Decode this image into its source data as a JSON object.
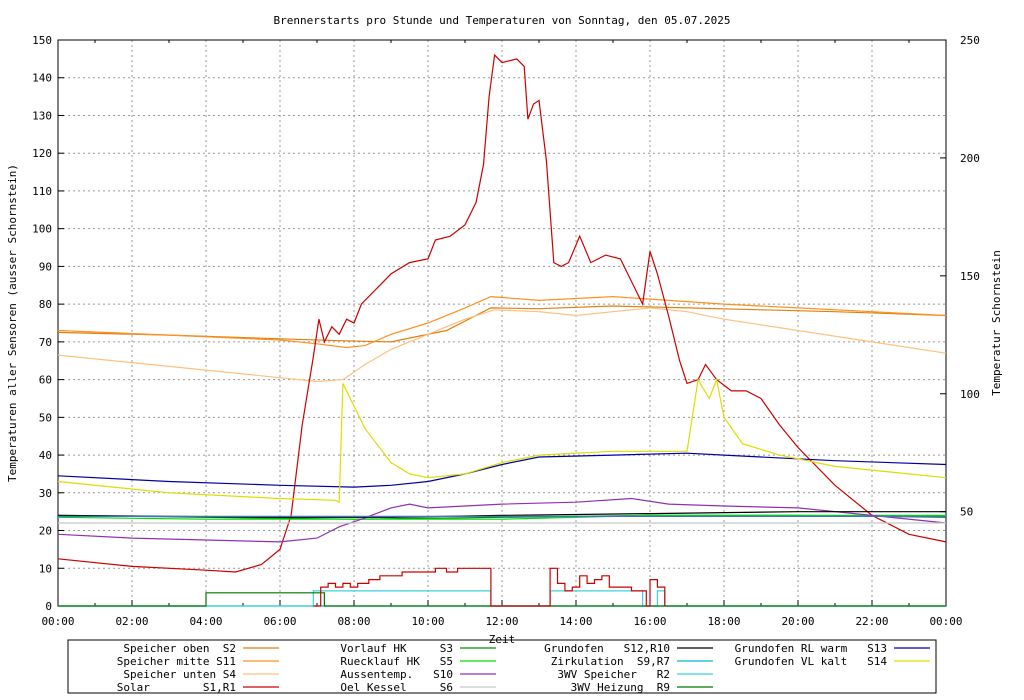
{
  "chart_data": {
    "type": "line",
    "title": "Brennerstarts pro Stunde und Temperaturen von Sonntag, den 05.07.2025",
    "xlabel": "Zeit",
    "ylabel_left": "Temperaturen aller Sensoren (ausser Schornstein)",
    "ylabel_right": "Temperatur Schornstein",
    "ylabel_right_color": "#ff44dd",
    "xlim": [
      0,
      24
    ],
    "ylim_left": [
      0,
      150
    ],
    "ylim_right": [
      10,
      250
    ],
    "x_ticks": [
      "00:00",
      "02:00",
      "04:00",
      "06:00",
      "08:00",
      "10:00",
      "12:00",
      "14:00",
      "16:00",
      "18:00",
      "20:00",
      "22:00",
      "00:00"
    ],
    "y_ticks_left": [
      "0",
      "10",
      "20",
      "30",
      "40",
      "50",
      "60",
      "70",
      "80",
      "90",
      "100",
      "110",
      "120",
      "130",
      "140",
      "150"
    ],
    "y_ticks_right": [
      {
        "v": 50,
        "label": "50"
      },
      {
        "v": 100,
        "label": "100"
      },
      {
        "v": 150,
        "label": "150"
      },
      {
        "v": 200,
        "label": "200"
      },
      {
        "v": 250,
        "label": "250"
      }
    ],
    "grid": true,
    "series": [
      {
        "name": "Speicher oben  S2",
        "color": "#e08010",
        "axis": "left",
        "points": [
          [
            0,
            72.5
          ],
          [
            3,
            71.8
          ],
          [
            6,
            70.8
          ],
          [
            7.6,
            70.3
          ],
          [
            9,
            70
          ],
          [
            10.5,
            73
          ],
          [
            11.7,
            79
          ],
          [
            13,
            78.8
          ],
          [
            15,
            79.5
          ],
          [
            17,
            79
          ],
          [
            19,
            78.5
          ],
          [
            21,
            78
          ],
          [
            24,
            77
          ]
        ]
      },
      {
        "name": "Speicher mitte S11",
        "color": "#ff9020",
        "axis": "left",
        "points": [
          [
            0,
            73
          ],
          [
            3,
            71.8
          ],
          [
            6,
            70.5
          ],
          [
            7,
            69.5
          ],
          [
            7.8,
            68.5
          ],
          [
            8.3,
            69
          ],
          [
            9,
            72
          ],
          [
            10,
            75
          ],
          [
            11,
            79
          ],
          [
            11.7,
            82
          ],
          [
            13,
            81
          ],
          [
            15,
            82
          ],
          [
            16.5,
            81
          ],
          [
            18,
            80
          ],
          [
            20,
            79
          ],
          [
            22,
            78
          ],
          [
            24,
            77
          ]
        ]
      },
      {
        "name": "Speicher unten S4",
        "color": "#ffc080",
        "axis": "left",
        "points": [
          [
            0,
            66.5
          ],
          [
            3,
            63.5
          ],
          [
            6,
            60.5
          ],
          [
            7,
            59.5
          ],
          [
            7.7,
            60
          ],
          [
            8.3,
            64
          ],
          [
            9,
            68
          ],
          [
            10,
            72
          ],
          [
            11,
            76
          ],
          [
            11.8,
            78.5
          ],
          [
            13,
            78
          ],
          [
            14,
            77
          ],
          [
            15,
            78
          ],
          [
            16,
            79
          ],
          [
            17,
            78
          ],
          [
            18,
            76
          ],
          [
            20,
            73
          ],
          [
            22,
            70
          ],
          [
            24,
            67
          ]
        ]
      },
      {
        "name": "Solar        S1,R1",
        "color": "#cc0000",
        "axis": "left",
        "points": [
          [
            0,
            12.5
          ],
          [
            2,
            10.5
          ],
          [
            4,
            9.5
          ],
          [
            4.8,
            9
          ],
          [
            5.5,
            11
          ],
          [
            6,
            15
          ],
          [
            6.3,
            24
          ],
          [
            6.6,
            48
          ],
          [
            6.9,
            66
          ],
          [
            7.05,
            76
          ],
          [
            7.2,
            70
          ],
          [
            7.4,
            74
          ],
          [
            7.6,
            72
          ],
          [
            7.8,
            76
          ],
          [
            8,
            75
          ],
          [
            8.2,
            80
          ],
          [
            8.6,
            84
          ],
          [
            9,
            88
          ],
          [
            9.5,
            91
          ],
          [
            10,
            92
          ],
          [
            10.2,
            97
          ],
          [
            10.6,
            98
          ],
          [
            11,
            101
          ],
          [
            11.3,
            107
          ],
          [
            11.5,
            117
          ],
          [
            11.65,
            135
          ],
          [
            11.8,
            146
          ],
          [
            12,
            144
          ],
          [
            12.4,
            145
          ],
          [
            12.6,
            143
          ],
          [
            12.7,
            129
          ],
          [
            12.85,
            133
          ],
          [
            13,
            134
          ],
          [
            13.2,
            118
          ],
          [
            13.4,
            91
          ],
          [
            13.6,
            90
          ],
          [
            13.8,
            91
          ],
          [
            14.1,
            98
          ],
          [
            14.4,
            91
          ],
          [
            14.8,
            93
          ],
          [
            15.2,
            92
          ],
          [
            15.6,
            84
          ],
          [
            15.8,
            80
          ],
          [
            16,
            94
          ],
          [
            16.2,
            88
          ],
          [
            16.5,
            77
          ],
          [
            16.8,
            65
          ],
          [
            17,
            59
          ],
          [
            17.3,
            60
          ],
          [
            17.5,
            64
          ],
          [
            17.8,
            60
          ],
          [
            18.2,
            57
          ],
          [
            18.6,
            57
          ],
          [
            19,
            55
          ],
          [
            19.5,
            48
          ],
          [
            20,
            42
          ],
          [
            21,
            32
          ],
          [
            22,
            24
          ],
          [
            23,
            19
          ],
          [
            24,
            17
          ]
        ]
      },
      {
        "name": "Vorlauf HK     S3",
        "color": "#009000",
        "axis": "left",
        "points": [
          [
            0,
            24
          ],
          [
            4,
            23.5
          ],
          [
            8,
            23
          ],
          [
            12,
            23.5
          ],
          [
            16,
            24
          ],
          [
            20,
            24
          ],
          [
            24,
            23.5
          ]
        ]
      },
      {
        "name": "Ruecklauf HK   S5",
        "color": "#00dd00",
        "axis": "left",
        "points": [
          [
            0,
            23.5
          ],
          [
            4,
            23
          ],
          [
            8,
            23
          ],
          [
            12,
            23
          ],
          [
            16,
            24
          ],
          [
            20,
            24
          ],
          [
            24,
            24
          ]
        ]
      },
      {
        "name": "Aussentemp.   S10",
        "color": "#9030b0",
        "axis": "left",
        "points": [
          [
            0,
            19
          ],
          [
            2,
            18
          ],
          [
            4,
            17.5
          ],
          [
            6,
            17
          ],
          [
            7,
            18
          ],
          [
            7.6,
            21
          ],
          [
            8.2,
            23
          ],
          [
            9,
            26
          ],
          [
            9.5,
            27
          ],
          [
            10,
            26
          ],
          [
            12,
            27
          ],
          [
            14,
            27.5
          ],
          [
            15.5,
            28.5
          ],
          [
            16.5,
            27
          ],
          [
            18,
            26.5
          ],
          [
            20,
            26
          ],
          [
            22,
            24
          ],
          [
            24,
            22
          ]
        ]
      },
      {
        "name": "Oel Kessel     S6",
        "color": "#c8c8c8",
        "axis": "left",
        "points": [
          [
            0,
            22
          ],
          [
            24,
            22
          ]
        ]
      },
      {
        "name": "Grundofen   S12,R10",
        "color": "#000000",
        "axis": "left",
        "points": [
          [
            0,
            24
          ],
          [
            6,
            23.5
          ],
          [
            9,
            23.5
          ],
          [
            12,
            24
          ],
          [
            16,
            24.5
          ],
          [
            20,
            25
          ],
          [
            24,
            25
          ]
        ]
      },
      {
        "name": "Zirkulation  S9,R7",
        "color": "#00bbcc",
        "axis": "left",
        "points": [
          [
            0,
            0
          ],
          [
            24,
            0
          ]
        ]
      },
      {
        "name": "3WV Speicher   R2",
        "color": "#40d0e0",
        "axis": "left",
        "step": true,
        "points": [
          [
            0,
            0
          ],
          [
            6.9,
            0
          ],
          [
            6.9,
            4
          ],
          [
            11.7,
            4
          ],
          [
            11.7,
            0
          ],
          [
            13.3,
            0
          ],
          [
            13.3,
            4
          ],
          [
            15.8,
            4
          ],
          [
            15.8,
            0
          ],
          [
            16.2,
            0
          ],
          [
            16.2,
            4
          ],
          [
            16.4,
            4
          ],
          [
            16.4,
            0
          ],
          [
            24,
            0
          ]
        ]
      },
      {
        "name": "3WV Heizung  R9",
        "color": "#007700",
        "axis": "left",
        "step": true,
        "points": [
          [
            0,
            0
          ],
          [
            4,
            0
          ],
          [
            4,
            3.5
          ],
          [
            7.2,
            3.5
          ],
          [
            7.2,
            0
          ],
          [
            24,
            0
          ]
        ]
      },
      {
        "name": "Grundofen RL warm   S13",
        "color": "#0000a0",
        "axis": "left",
        "points": [
          [
            0,
            34.5
          ],
          [
            3,
            33
          ],
          [
            6,
            32
          ],
          [
            8,
            31.5
          ],
          [
            9,
            32
          ],
          [
            10,
            33
          ],
          [
            11,
            35
          ],
          [
            12,
            37.5
          ],
          [
            13,
            39.5
          ],
          [
            15,
            40
          ],
          [
            17,
            40.5
          ],
          [
            18,
            40
          ],
          [
            19,
            39.5
          ],
          [
            21,
            38.5
          ],
          [
            24,
            37.5
          ]
        ]
      },
      {
        "name": "Grundofen VL kalt   S14",
        "color": "#dddd00",
        "axis": "left",
        "points": [
          [
            0,
            33
          ],
          [
            3,
            30
          ],
          [
            6,
            28.5
          ],
          [
            7.5,
            28
          ],
          [
            7.6,
            27.5
          ],
          [
            7.7,
            59
          ],
          [
            8.3,
            47
          ],
          [
            9,
            38
          ],
          [
            9.5,
            35
          ],
          [
            10,
            34
          ],
          [
            11,
            35
          ],
          [
            12,
            38
          ],
          [
            13,
            40
          ],
          [
            15,
            41
          ],
          [
            17,
            41
          ],
          [
            17.3,
            60
          ],
          [
            17.6,
            55
          ],
          [
            17.8,
            60
          ],
          [
            18,
            50
          ],
          [
            18.5,
            43
          ],
          [
            19.5,
            40
          ],
          [
            21,
            37
          ],
          [
            24,
            34
          ]
        ]
      },
      {
        "name": "Schornstein",
        "color": "#4070d0",
        "axis": "right",
        "points": [
          [
            0,
            48
          ],
          [
            24,
            48
          ]
        ]
      }
    ],
    "burner_starts": [
      {
        "name": "Brennerstarts",
        "color": "#cc0000",
        "values": [
          [
            6.9,
            0
          ],
          [
            7.1,
            5
          ],
          [
            7.3,
            6
          ],
          [
            7.5,
            5
          ],
          [
            7.7,
            6
          ],
          [
            7.9,
            5
          ],
          [
            8.1,
            6
          ],
          [
            8.4,
            7
          ],
          [
            8.7,
            8
          ],
          [
            9,
            8
          ],
          [
            9.3,
            9
          ],
          [
            9.6,
            9
          ],
          [
            9.9,
            9
          ],
          [
            10.2,
            10
          ],
          [
            10.5,
            9
          ],
          [
            10.8,
            10
          ],
          [
            11.1,
            10
          ],
          [
            11.4,
            10
          ],
          [
            11.7,
            0
          ],
          [
            13.3,
            10
          ],
          [
            13.5,
            6
          ],
          [
            13.7,
            4
          ],
          [
            13.9,
            5
          ],
          [
            14.1,
            8
          ],
          [
            14.3,
            6
          ],
          [
            14.5,
            7
          ],
          [
            14.7,
            8
          ],
          [
            14.9,
            5
          ],
          [
            15.1,
            5
          ],
          [
            15.3,
            5
          ],
          [
            15.5,
            4
          ],
          [
            15.7,
            4
          ],
          [
            15.9,
            0
          ],
          [
            16,
            7
          ],
          [
            16.2,
            5
          ],
          [
            16.4,
            0
          ]
        ]
      }
    ]
  },
  "legend": [
    [
      "Speicher oben  S2",
      "#e08010"
    ],
    [
      "Speicher mitte S11",
      "#ff9020"
    ],
    [
      "Speicher unten S4",
      "#ffc080"
    ],
    [
      "Solar        S1,R1",
      "#cc0000"
    ],
    [
      "Vorlauf HK     S3",
      "#009000"
    ],
    [
      "Ruecklauf HK   S5",
      "#00dd00"
    ],
    [
      "Aussentemp.   S10",
      "#9030b0"
    ],
    [
      "Oel Kessel     S6",
      "#c8c8c8"
    ],
    [
      "Grundofen   S12,R10",
      "#000000"
    ],
    [
      "Zirkulation  S9,R7",
      "#00bbcc"
    ],
    [
      "3WV Speicher   R2",
      "#40d0e0"
    ],
    [
      "3WV Heizung  R9",
      "#007700"
    ],
    [
      "Grundofen RL warm   S13",
      "#0000a0"
    ],
    [
      "Grundofen VL kalt   S14",
      "#dddd00"
    ],
    [
      "",
      "#ffffff"
    ],
    [
      "",
      "#ffffff"
    ]
  ]
}
